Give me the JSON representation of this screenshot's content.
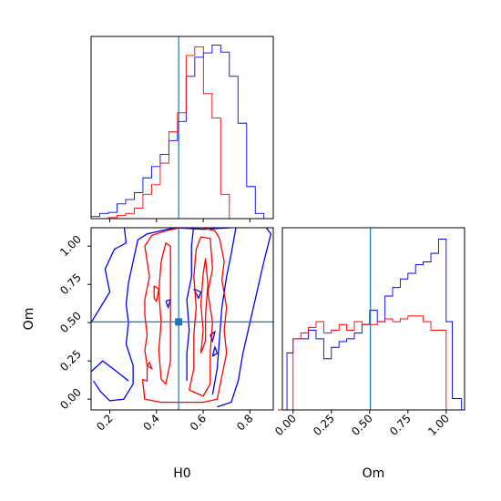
{
  "chart_data": {
    "type": "corner",
    "parameters": [
      "H0",
      "Om"
    ],
    "truth": {
      "H0": 0.495,
      "Om": 0.505
    },
    "colors": {
      "series_a": "#0000ff",
      "series_b": "#ff0000",
      "truth": "#1f77b4"
    },
    "hist_H0": {
      "bin_edges": [
        0.12,
        0.157,
        0.194,
        0.231,
        0.268,
        0.305,
        0.342,
        0.379,
        0.416,
        0.453,
        0.49,
        0.527,
        0.564,
        0.601,
        0.638,
        0.675,
        0.712,
        0.749,
        0.786,
        0.823,
        0.86,
        0.897
      ],
      "series_a": [
        0.012,
        0.03,
        0.036,
        0.085,
        0.11,
        0.15,
        0.235,
        0.3,
        0.37,
        0.45,
        0.56,
        0.82,
        0.93,
        0.955,
        1.0,
        0.96,
        0.82,
        0.55,
        0.185,
        0.03,
        0.0
      ],
      "series_b": [
        0.0,
        0.0,
        0.006,
        0.018,
        0.03,
        0.06,
        0.14,
        0.195,
        0.32,
        0.5,
        0.61,
        0.94,
        0.99,
        0.72,
        0.58,
        0.14,
        0.0,
        0.0,
        0.0,
        0.0,
        0.0
      ]
    },
    "hist_Om": {
      "bin_edges": [
        -0.1,
        -0.04,
        0.0,
        0.05,
        0.1,
        0.15,
        0.2,
        0.25,
        0.3,
        0.35,
        0.4,
        0.45,
        0.5,
        0.55,
        0.6,
        0.65,
        0.7,
        0.75,
        0.8,
        0.85,
        0.9,
        0.95,
        1.0,
        1.04,
        1.1
      ],
      "series_a": [
        0.0,
        0.2,
        0.25,
        0.25,
        0.28,
        0.25,
        0.18,
        0.22,
        0.24,
        0.25,
        0.27,
        0.3,
        0.35,
        0.31,
        0.4,
        0.43,
        0.46,
        0.48,
        0.51,
        0.52,
        0.55,
        0.6,
        0.31,
        0.04
      ],
      "series_b": [
        0.0,
        0.0,
        0.25,
        0.27,
        0.29,
        0.31,
        0.27,
        0.28,
        0.3,
        0.28,
        0.31,
        0.3,
        0.3,
        0.31,
        0.32,
        0.31,
        0.32,
        0.33,
        0.33,
        0.31,
        0.28,
        0.28,
        0.0,
        0.0
      ]
    },
    "contours": {
      "series_b": [
        [
          [
            0.34,
            0.13
          ],
          [
            0.36,
            0.12
          ],
          [
            0.36,
            0.22
          ],
          [
            0.35,
            0.32
          ],
          [
            0.36,
            0.42
          ],
          [
            0.35,
            0.55
          ],
          [
            0.35,
            0.65
          ],
          [
            0.37,
            0.8
          ],
          [
            0.36,
            0.9
          ],
          [
            0.35,
            1.0
          ],
          [
            0.38,
            1.07
          ],
          [
            0.44,
            1.1
          ],
          [
            0.5,
            1.12
          ],
          [
            0.6,
            1.12
          ],
          [
            0.65,
            1.1
          ],
          [
            0.67,
            1.05
          ],
          [
            0.69,
            0.9
          ],
          [
            0.68,
            0.78
          ],
          [
            0.7,
            0.6
          ],
          [
            0.69,
            0.45
          ],
          [
            0.7,
            0.3
          ],
          [
            0.68,
            0.15
          ],
          [
            0.66,
            0.0
          ],
          [
            0.6,
            -0.02
          ],
          [
            0.42,
            -0.02
          ],
          [
            0.35,
            0.0
          ],
          [
            0.34,
            0.13
          ]
        ],
        [
          [
            0.42,
            0.13
          ],
          [
            0.41,
            0.32
          ],
          [
            0.42,
            0.5
          ],
          [
            0.41,
            0.7
          ],
          [
            0.42,
            0.9
          ],
          [
            0.44,
            1.02
          ],
          [
            0.46,
            1.0
          ],
          [
            0.46,
            0.75
          ],
          [
            0.46,
            0.55
          ],
          [
            0.46,
            0.25
          ],
          [
            0.44,
            0.1
          ],
          [
            0.42,
            0.13
          ]
        ],
        [
          [
            0.54,
            0.06
          ],
          [
            0.56,
            0.2
          ],
          [
            0.56,
            0.42
          ],
          [
            0.57,
            0.6
          ],
          [
            0.56,
            0.8
          ],
          [
            0.57,
            0.98
          ],
          [
            0.59,
            1.06
          ],
          [
            0.63,
            1.05
          ],
          [
            0.64,
            0.85
          ],
          [
            0.62,
            0.7
          ],
          [
            0.64,
            0.5
          ],
          [
            0.63,
            0.3
          ],
          [
            0.63,
            0.1
          ],
          [
            0.6,
            0.02
          ],
          [
            0.54,
            0.06
          ]
        ],
        [
          [
            0.59,
            0.3
          ],
          [
            0.6,
            0.45
          ],
          [
            0.59,
            0.62
          ],
          [
            0.6,
            0.82
          ],
          [
            0.61,
            0.92
          ],
          [
            0.62,
            0.75
          ],
          [
            0.61,
            0.55
          ],
          [
            0.61,
            0.38
          ],
          [
            0.59,
            0.3
          ]
        ],
        [
          [
            0.39,
            0.74
          ],
          [
            0.39,
            0.66
          ],
          [
            0.4,
            0.64
          ],
          [
            0.41,
            0.72
          ],
          [
            0.39,
            0.74
          ]
        ],
        [
          [
            0.36,
            0.22
          ],
          [
            0.37,
            0.24
          ],
          [
            0.38,
            0.2
          ],
          [
            0.36,
            0.22
          ]
        ]
      ],
      "series_a": [
        [
          [
            0.13,
            0.12
          ],
          [
            0.16,
            0.05
          ],
          [
            0.2,
            -0.01
          ],
          [
            0.26,
            0.0
          ],
          [
            0.3,
            0.1
          ],
          [
            0.3,
            0.22
          ],
          [
            0.27,
            0.36
          ],
          [
            0.28,
            0.5
          ],
          [
            0.27,
            0.62
          ],
          [
            0.28,
            0.76
          ],
          [
            0.3,
            0.9
          ],
          [
            0.32,
            1.04
          ],
          [
            0.36,
            1.08
          ],
          [
            0.48,
            1.12
          ],
          [
            0.6,
            1.11
          ],
          [
            0.72,
            1.12
          ],
          [
            0.86,
            1.14
          ],
          [
            0.89,
            1.08
          ],
          [
            0.86,
            0.9
          ],
          [
            0.83,
            0.7
          ],
          [
            0.8,
            0.5
          ],
          [
            0.77,
            0.3
          ],
          [
            0.75,
            0.12
          ],
          [
            0.72,
            -0.02
          ],
          [
            0.66,
            -0.05
          ]
        ],
        [
          [
            0.12,
            0.5
          ],
          [
            0.16,
            0.6
          ],
          [
            0.2,
            0.7
          ],
          [
            0.18,
            0.85
          ],
          [
            0.22,
            0.98
          ],
          [
            0.27,
            1.02
          ],
          [
            0.26,
            1.15
          ]
        ],
        [
          [
            0.64,
            0.03
          ],
          [
            0.66,
            0.2
          ],
          [
            0.67,
            0.4
          ],
          [
            0.68,
            0.6
          ],
          [
            0.7,
            0.8
          ],
          [
            0.72,
            0.95
          ],
          [
            0.74,
            1.12
          ]
        ],
        [
          [
            0.53,
            0.12
          ],
          [
            0.53,
            0.3
          ],
          [
            0.54,
            0.45
          ],
          [
            0.53,
            0.65
          ],
          [
            0.55,
            0.8
          ],
          [
            0.55,
            1.0
          ],
          [
            0.56,
            1.14
          ]
        ],
        [
          [
            0.12,
            0.18
          ],
          [
            0.17,
            0.25
          ],
          [
            0.23,
            0.18
          ],
          [
            0.28,
            0.12
          ]
        ],
        [
          [
            0.44,
            0.64
          ],
          [
            0.45,
            0.6
          ],
          [
            0.46,
            0.65
          ],
          [
            0.44,
            0.64
          ]
        ],
        [
          [
            0.64,
            0.28
          ],
          [
            0.65,
            0.34
          ],
          [
            0.66,
            0.3
          ],
          [
            0.64,
            0.28
          ]
        ],
        [
          [
            0.56,
            0.72
          ],
          [
            0.58,
            0.66
          ],
          [
            0.59,
            0.7
          ],
          [
            0.56,
            0.72
          ]
        ],
        [
          [
            0.63,
            0.42
          ],
          [
            0.64,
            0.38
          ],
          [
            0.65,
            0.44
          ],
          [
            0.63,
            0.42
          ]
        ]
      ]
    },
    "axes": {
      "x_H0": {
        "label": "H0",
        "range": [
          0.12,
          0.9
        ],
        "ticks": [
          0.2,
          0.4,
          0.6,
          0.8
        ],
        "tick_labels": [
          "0.2",
          "0.4",
          "0.6",
          "0.8"
        ]
      },
      "y_Om": {
        "label": "Om",
        "range": [
          -0.07,
          1.12
        ],
        "ticks": [
          0.0,
          0.25,
          0.5,
          0.75,
          1.0
        ],
        "tick_labels": [
          "0.00",
          "0.25",
          "0.50",
          "0.75",
          "1.00"
        ]
      },
      "x_Om": {
        "label": "Om",
        "range": [
          -0.07,
          1.12
        ],
        "ticks": [
          0.0,
          0.25,
          0.5,
          0.75,
          1.0
        ],
        "tick_labels": [
          "0.00",
          "0.25",
          "0.50",
          "0.75",
          "1.00"
        ]
      }
    }
  }
}
